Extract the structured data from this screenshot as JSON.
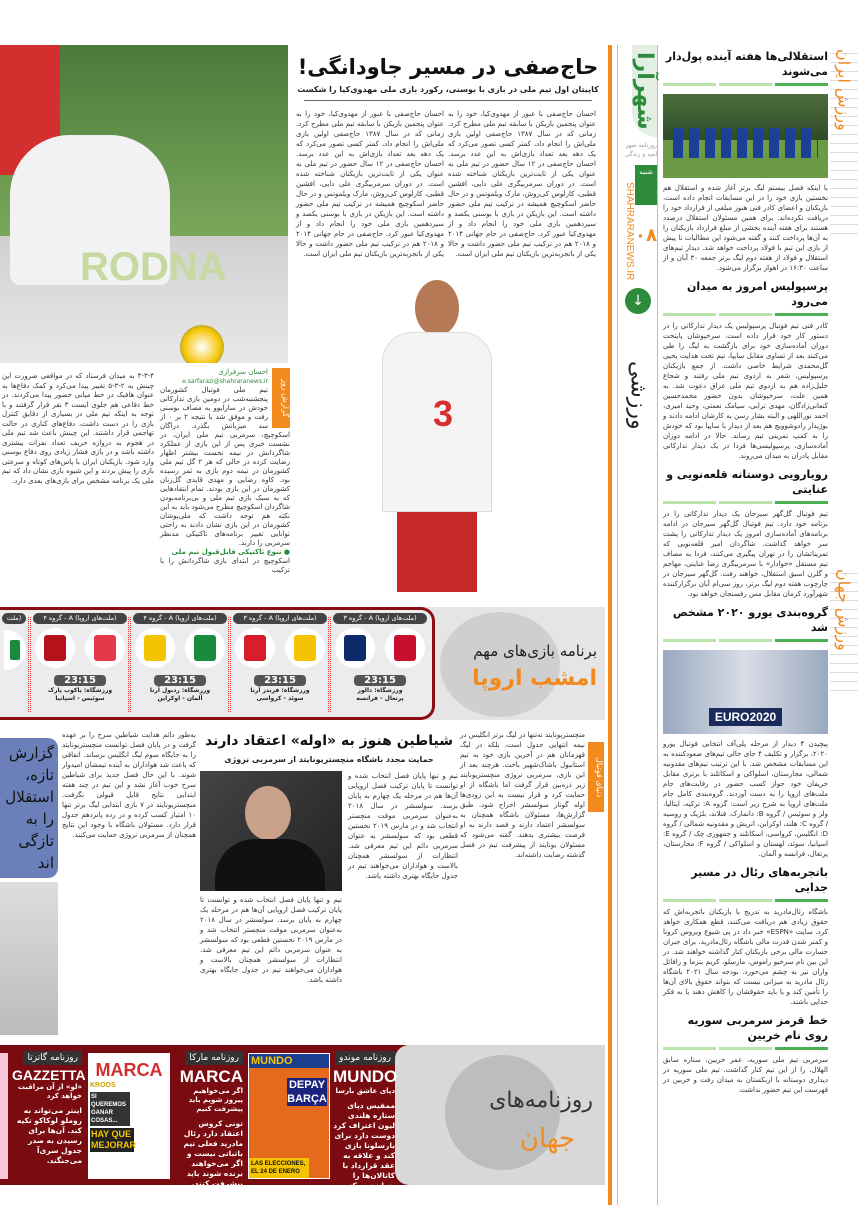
{
  "masthead": {
    "logo": "شهرآرا",
    "tagline": "روزنامه شهر امید و زندگی",
    "day": "شنبه",
    "site": "SHAHRARANEWS.IR",
    "page_number": "۰۸",
    "section": "ورزشی",
    "accent": "#f28a1e",
    "green": "#2e8b3c"
  },
  "side_labels": {
    "iran": "ورزش ایران",
    "world": "ورزش جهان"
  },
  "right_col": {
    "a1": {
      "title": "استقلالی‌ها هفته آینده پول‌دار می‌شوند",
      "body": "با اینکه فصل بیستم لیگ برتر آغاز شده و استقلال هم نخستین بازی خود را در این مسابقات انجام داده است، بازیکنان و اعضای کادر فنی هنوز مبلغی از قرارداد خود را دریافت نکرده‌اند. برای همین مسئولان استقلال درصدد هستند برای هفته آینده بخشی از مبلغ قرارداد بازیکنان را به آن‌ها پرداخت کنند و گفته می‌شود این مطالبات تا پیش از بازی این تیم با فولاد پرداخت خواهد شد. دیدار تیم‌های استقلال و فولاد از هفته دوم لیگ برتر جمعه ۳۰ آبان و از ساعت ۱۶:۳۰ در اهواز برگزار می‌شود."
    },
    "a2": {
      "title": "پرسپولیس امروز به میدان می‌رود",
      "body": "کادر فنی تیم فوتبال پرسپولیس یک دیدار تدارکاتی را در دستور کار خود قرار داده است. سرخپوشان پایتخت دوران آماده‌سازی خود برای بازگشت به لیگ را طی می‌کنند بعد از تساوی مقابل سایپا، تیم تحت هدایت یحیی گل‌محمدی شرایط خاصی داشت. از جمع بازیکنان پرسپولیس، شفر به اردوی تیم ملی رفتند و شجاع خلیل‌زاده هم به اردوی تیم ملی عراق دعوت شد. به همین علت، سرخپوشان بدون حضور محمدحسین کنعانی‌زادگان، مهدی ترابی، سیامک نعمتی، وحید امیری، احمد نوراللهی و البته بشار رسن به کارشان ادامه دادند و بوژیدار رادوشوویچ هم بعد از دیدار با سایپا بود که خودش را به کمپ تمرینی تیم رساند. حالا در ادامه دوران آماده‌سازی، پرسپولیسی‌ها فردا در یک دیدار تدارکاتی مقابل پادران به میدان می‌روند."
    },
    "a3": {
      "title": "رویارویی دوستانه قلعه‌نویی و عنایتی",
      "body": "تیم فوتبال گل‌گهر سیرجان یک دیدار تدارکاتی را در برنامه خود دارد. تیم فوتبال گل‌گهر سیرجان در ادامه برنامه‌های آماده‌سازی امروز یک دیدار تدارکاتی را پشت سر خواهد گذاشت. شاگردان امیر قلعه‌نویی که تمریناتشان را در تهران پیگیری می‌کنند، فردا به مصاف تیم مستقل «خوادار» با سرمربیگری رضا عنایتی، مهاجم و گلزن اسبق استقلال، خواهند رفت. گل‌گهر سیرجان در چارچوب هفته دوم لیگ برتر، روز سی‌ام آبان برگزارکننده شهرآورد کرمان مقابل مس رفسنجان خواهد بود."
    },
    "a4": {
      "title": "گروه‌بندی یورو ۲۰۲۰ مشخص شد",
      "photo_text": "EURO2020",
      "body": "پیچیدن ۴ دیدار از مرحله پلی‌آف انتخابی فوتبال یورو ۲۰۲۰، برگزار و تکلیف ۴ جای خالی تیم‌های صعودکننده به این مسابقات مشخص شد. با این ترتیب تیم‌های مقدونیه شمالی، مجارستان، اسلواکی و اسکاتلند با برتری مقابل حریفان خود جواز کسب حضور در رقابت‌های جام ملت‌های اروپا را به دست آوردند. گروه‌بندی کامل جام ملت‌های اروپا به شرح زیر است: گروه A: ترکیه، ایتالیا، ولز و سوئیس / گروه B: دانمارک، فنلاند، بلژیک و روسیه / گروه C: هلند، اوکراین، اتریش و مقدونیه شمالی / گروه D: انگلیس، کرواسی، اسکاتلند و جمهوری چک / گروه E: اسپانیا، سوئد، لهستان و اسلواکی / گروه F: مجارستان، پرتغال، فرانسه و آلمان."
    },
    "a5": {
      "title": "باتجربه‌های رئال در مسیر جدایی",
      "body": "باشگاه رئال‌مادرید به تدریج با بازیکنان باتجربه‌اش که حقوق زیادی هم دریافت می‌کنند، قطع همکاری خواهد کرد. سایت «ESPN» خبر داد در پی شیوع ویروس کرونا و کمتر شدن قدرت مالی باشگاه رئال‌مادرید، برای جبران خسارت مالی برخی بازیکنان کنار گذاشته خواهند شد. در این بین نام سرخیو راموس، مارسلو، کریم بنزما و رافائل واران نیز به چشم می‌خورد. بودجه سال ۲۰۲۱ باشگاه رئال مادرید به میزانی نیست که بتواند حقوق بالای آن‌ها را تأمین کند و یا باید حقوقشان را کاهش دهند یا به فکر جدایی باشند."
    },
    "a6": {
      "title": "خط قرمز سرمربی سوریه روی نام خربین",
      "body": "سرمربی تیم ملی سوریه، عمر خربین، ستاره سابق الهلال، را از این تیم کنار گذاشت. تیم ملی سوریه در دیداری دوستانه با ازبکستان به میدان رفت و خربین در فهرست این تیم حضور نداشت."
    }
  },
  "main": {
    "title": "حاج‌صفی در مسیر جاودانگی!",
    "subtitle": "کاپیتان اول تیم ملی در بازی با بوسنی، رکورد بازی ملی مهدوی‌کیا را شکست",
    "body": "احسان حاج‌صفی با عبور از مهدوی‌کیا، خود را به عنوان پنجمین بازیکن با سابقه تیم ملی مطرح کرد. زمانی که در سال ۱۳۸۷ حاج‌صفی اولین بازی ملی‌اش را انجام داد، کمتر کسی تصور می‌کرد که یک دهه بعد تعداد بازی‌اش به این عدد برسد. احسان حاج‌صفی در ۱۲ سال حضور در تیم ملی به عنوان یکی از ثابت‌ترین بازیکنان شناخته شده است. در دوران سرمربیگری علی دایی، افشین قطبی، کارلوس کی‌روش، مارک ویلموتس و در حال حاضر اسکوچیچ همیشه در ترکیب تیم ملی حضور داشته است. این بازیکن در بازی با بوسنی یکصد و سیزدهمین بازی ملی خود را انجام داد و از مهدوی‌کیا عبور کرد. حاج‌صفی در جام جهانی ۲۰۱۴ و ۲۰۱۸ هم در ترکیب تیم ملی حضور داشت و حالا یکی از باتجربه‌ترین بازیکنان تیم ملی ایران است."
  },
  "column": {
    "label": "گزارش روز",
    "author": "احسان سرفرازی",
    "email": "e.sarfarazi@shahraranews.ir",
    "body": "تیم ملی فوتبال کشورمان پنجشنبه‌شب در دومین بازی تدارکاتی خودش در سارایوو به مصاف بوسنی رفت و موفق شد با نتیجه ۲ بر ۰ از سد میزبانش بگذرد. دراگان اسکوچیچ، سرمربی تیم ملی ایران، در نشست خبری پس از این بازی از عملکرد شاگردانش در نیمه نخست بیشتر اظهار رضایت کرده در حالی که هر ۲ گل تیم ملی کشورمان در نیمه دوم بازی به ثمر رسیده بود. کاوه رضایی و مهدی قایدی گل‌زنان کشورمان در این بازی بودند. تمام انتقادهایی که به سبک بازی تیم ملی و بی‌برنامه‌بودن شاگردان اسکوچیچ مطرح می‌شود باید به این نکته هم توجه داشت که ملی‌پوشان کشورمان در این بازی نشان دادند به راحتی توانایی تغییر برنامه‌های تاکتیکی مدنظر سرمربی را دارند.",
    "bullet": "تنوع تاکتیکی قابل‌قبول تیم ملی",
    "bullet_body": "اسکوچیچ در ابتدای بازی شاگردانش را با ترکیب"
  },
  "left_col": {
    "body": "۳-۳-۴ به میدان فرستاد که در مواقعی ضرورت این چینش به ۲-۳-۵ تغییر پیدا می‌کرد و کمک دفاع‌ها به عنوان هافبک در خط میانی حضور پیدا می‌کردند. در خط دفاعی هم جلوی ایست ۳ نفر قرار گرفتند و با توجه به اینکه تیم ملی در بسیاری از دقایق کنترل بازی را در دست داشت، دفاع‌های کناری در حالت تهاجمی قرار داشتند. این چینش باعث شد تیم ملی در هجوم به دروازه حریف تعداد نفرات بیشتری داشته باشد و در بازی فشار زیادی روی دفاع بوسنی وارد شود. بازیکنان ایران با پاس‌های کوتاه و سرعتی بازی را پیش بردند و این شیوه بازی نشان داد که تیم ملی یک برنامه مشخص برای بازی‌های بعدی دارد."
  },
  "europe": {
    "title_top": "برنامه بازی‌های مهم",
    "title_bottom": "امشب اروپا",
    "fixtures": [
      {
        "group": "(ملت‌های اروپا) A - گروه ۳",
        "home": "پرتغال",
        "away": "فرانسه",
        "home_flag": "#c8102e",
        "away_flag": "#0d2a6b",
        "time": "23:15",
        "stadium": "ورزشگاه: دالوز",
        "teams": "پرتغال - فرانسه"
      },
      {
        "group": "(ملت‌های اروپا) A - گروه ۳",
        "home": "سوئد",
        "away": "کرواسی",
        "home_flag": "#f5c400",
        "away_flag": "#d81e2c",
        "time": "23:15",
        "stadium": "ورزشگاه: فرندز آرنا",
        "teams": "سوئد - کرواسی"
      },
      {
        "group": "(ملت‌های اروپا) A - گروه ۴",
        "home": "آلمان",
        "away": "اوکراین",
        "home_flag": "#1a8a3d",
        "away_flag": "#f5c400",
        "time": "23:15",
        "stadium": "ورزشگاه: ردبول آرنا",
        "teams": "آلمان - اوکراین"
      },
      {
        "group": "(ملت‌های اروپا) A - گروه ۴",
        "home": "سوئیس",
        "away": "اسپانیا",
        "home_flag": "#e5394a",
        "away_flag": "#b5121b",
        "time": "23:15",
        "stadium": "ورزشگاه: یاکوب پارک",
        "teams": "سوئیس - اسپانیا"
      },
      {
        "group": "(ملت",
        "home": "",
        "away": "",
        "home_flag": "#1a8a3d",
        "away_flag": "",
        "time": "",
        "stadium": "",
        "teams": ""
      }
    ]
  },
  "united": {
    "label": "دنیای فوتبال",
    "title": "شیاطین هنوز به «اوله» اعتقاد دارند",
    "subtitle": "حمایت مجدد باشگاه منچستریونایتد از سرمربی نروژی",
    "side_body": "منچستریونایتد نه‌تنها در لیگ برتر انگلیس در نیمه انتهایی جدول است، بلکه در لیگ قهرمانان هم در آخرین بازی خود به تیم استانبول باشاک‌شهیر باخت. هرچند بعد از این بازی، سرمربی نروژی منچستریونایتد زیر ذره‌بین قرار گرفت اما باشگاه از او حمایت کرد و قرار نیست به این زودی‌ها اوله گونار سولسشر اخراج شود. طبق گزارش‌ها، مسئولان باشگاه همچنان به سولسشر اعتماد دارند و قصد دارند به او فرصت بیشتری بدهند. گفته می‌شود که مسئولان یونایتد از پیشرفت تیم در فصل گذشته رضایت داشته‌اند.",
    "body": "تیم و تنها پایان فصل انتخاب شده و توانست تا پایان ترکیب فصل اروپایی آن‌ها هم در مرحله یک چهارم به پایان برسد. سولسشر در سال ۲۰۱۸ به‌عنوان سرمربی موقت منچستر انتخاب شد و در مارس ۲۰۱۹ نخستین قطعی بود که سولسشر به عنوان سرمربی دائم این تیم معرفی شد. انتظارات از سولسشر همچنان بالاست و هواداران می‌خواهند تیم در جدول جایگاه بهتری داشته باشد.",
    "left_body": "به‌طور دائم هدایت شیاطین سرخ را بر عهده گرفت و در پایان فصل توانست منچستریونایتد را به جایگاه سوم لیگ انگلیس برساند. اتفاقی که باعث شد هواداران به آینده تیمشان امیدوار شوند. با این حال فصل جدید برای شیاطین سرخ خوب آغاز نشد و این تیم در چند هفته ابتدایی نتایج قابل قبولی نگرفت. منچستریونایتد در ۷ بازی ابتدایی لیگ برتر تنها ۱۰ امتیاز کسب کرده و در رده پانزدهم جدول قرار دارد. مسئولان باشگاه با وجود این نتایج همچنان از سرمربی نروژی حمایت می‌کنند.",
    "blue_box": "گزارش تازه، استقلال را به تازگی اند"
  },
  "newspapers": {
    "title_top": "روزنامه‌های",
    "title_bottom": "جهان",
    "items": [
      {
        "label": "روزنامه موندو",
        "name": "MUNDO",
        "sub": "دپای عاشق بارسا",
        "text": "ممفیس دپای ستاره هلندی لیون اعتراف کرد دوست دارد برای بارسلونا بازی کند و علاقه به عقد قرارداد با کاتالان‌ها را پنهان نمی‌کند.",
        "cover": {
          "masthead": "MUNDO",
          "headline": "DEPAY BARÇA",
          "footer": "LAS ELECCIONES, EL 24 DE ENERO"
        }
      },
      {
        "label": "روزنامه مارکا",
        "name": "MARCA",
        "sub": "اگر می‌خواهیم پیروز شویم باید پیشرفت کنیم",
        "text": "تونی کروس اعتقاد دارد رئال مادرید فعلی تیم باثباتی نیست و اگر می‌خواهند برنده شوند باید پیشرفت کنند.",
        "cover": {
          "masthead": "MARCA",
          "headline": "HAY QUE MEJORAR",
          "quote": "SI QUEREMOS GANAR COSAS...",
          "player": "KROOS"
        }
      },
      {
        "label": "روزنامه گاتزتا",
        "name": "GAZZETTA",
        "sub": "«لو» از آن مراقبت خواهد کرد",
        "text": "اینتر می‌تواند به روملو لوکاکو تکیه کند. آن‌ها برای رسیدن به صدر جدول سری‌آ می‌جنگند."
      }
    ]
  }
}
